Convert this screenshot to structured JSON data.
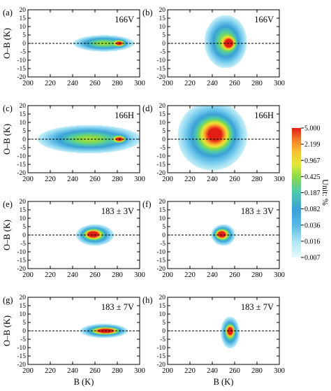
{
  "chart_data": [
    {
      "type": "heatmap",
      "panel_label": "(a)",
      "channel_label": "166V",
      "ylabel": "O–B (K)",
      "xlabel": "",
      "xlim": [
        200,
        300
      ],
      "ylim": [
        -20,
        20
      ],
      "xticks": [
        200,
        220,
        240,
        260,
        280,
        300
      ],
      "yticks": [
        20,
        15,
        10,
        5,
        0,
        -5,
        -10,
        -15,
        -20
      ],
      "reference_line_y": 0,
      "density_blobs": [
        {
          "x": 282,
          "y": 0,
          "sx": 2.5,
          "sy": 1.0,
          "w": 1.0
        },
        {
          "x": 268,
          "y": 0,
          "sx": 13,
          "sy": 2.3,
          "w": 0.55
        }
      ]
    },
    {
      "type": "heatmap",
      "panel_label": "(b)",
      "channel_label": "166V",
      "ylabel": "",
      "xlabel": "",
      "xlim": [
        200,
        300
      ],
      "ylim": [
        -20,
        20
      ],
      "xticks": [
        200,
        220,
        240,
        260,
        280,
        300
      ],
      "yticks": [
        20,
        15,
        10,
        5,
        0,
        -5,
        -10,
        -15,
        -20
      ],
      "reference_line_y": 0,
      "density_blobs": [
        {
          "x": 255,
          "y": 0,
          "sx": 3,
          "sy": 2,
          "w": 1.0
        },
        {
          "x": 252,
          "y": 1,
          "sx": 9,
          "sy": 7.5,
          "w": 0.55
        }
      ]
    },
    {
      "type": "heatmap",
      "panel_label": "(c)",
      "channel_label": "166H",
      "ylabel": "O–B (K)",
      "xlabel": "",
      "xlim": [
        200,
        300
      ],
      "ylim": [
        -20,
        20
      ],
      "xticks": [
        200,
        220,
        240,
        260,
        280,
        300
      ],
      "yticks": [
        20,
        15,
        10,
        5,
        0,
        -5,
        -10,
        -15,
        -20
      ],
      "reference_line_y": 0,
      "density_blobs": [
        {
          "x": 282,
          "y": 0,
          "sx": 3,
          "sy": 1.1,
          "w": 1.0
        },
        {
          "x": 255,
          "y": 0,
          "sx": 22,
          "sy": 4.0,
          "w": 0.55
        }
      ]
    },
    {
      "type": "heatmap",
      "panel_label": "(d)",
      "channel_label": "166H",
      "ylabel": "",
      "xlabel": "",
      "xlim": [
        200,
        300
      ],
      "ylim": [
        -20,
        20
      ],
      "xticks": [
        200,
        220,
        240,
        260,
        280,
        300
      ],
      "yticks": [
        20,
        15,
        10,
        5,
        0,
        -5,
        -10,
        -15,
        -20
      ],
      "reference_line_y": 0,
      "density_blobs": [
        {
          "x": 243,
          "y": 3,
          "sx": 8,
          "sy": 5,
          "w": 0.7
        },
        {
          "x": 240,
          "y": 2,
          "sx": 15,
          "sy": 10,
          "w": 0.5
        }
      ]
    },
    {
      "type": "heatmap",
      "panel_label": "(e)",
      "channel_label": "183 ± 3V",
      "ylabel": "O–B (K)",
      "xlabel": "",
      "xlim": [
        200,
        300
      ],
      "ylim": [
        -20,
        20
      ],
      "xticks": [
        200,
        220,
        240,
        260,
        280,
        300
      ],
      "yticks": [
        20,
        15,
        10,
        5,
        0,
        -5,
        -10,
        -15,
        -20
      ],
      "reference_line_y": 0,
      "density_blobs": [
        {
          "x": 258,
          "y": 0.5,
          "sx": 4,
          "sy": 1.5,
          "w": 1.0
        },
        {
          "x": 260,
          "y": 0,
          "sx": 8,
          "sy": 3,
          "w": 0.55
        }
      ]
    },
    {
      "type": "heatmap",
      "panel_label": "(f)",
      "channel_label": "183 ± 3V",
      "ylabel": "",
      "xlabel": "",
      "xlim": [
        200,
        300
      ],
      "ylim": [
        -20,
        20
      ],
      "xticks": [
        200,
        220,
        240,
        260,
        280,
        300
      ],
      "yticks": [
        20,
        15,
        10,
        5,
        0,
        -5,
        -10,
        -15,
        -20
      ],
      "reference_line_y": 0,
      "density_blobs": [
        {
          "x": 248,
          "y": 0.5,
          "sx": 3,
          "sy": 1.5,
          "w": 1.0
        },
        {
          "x": 250,
          "y": 0,
          "sx": 5,
          "sy": 3,
          "w": 0.55
        }
      ]
    },
    {
      "type": "heatmap",
      "panel_label": "(g)",
      "channel_label": "183 ± 7V",
      "ylabel": "O–B (K)",
      "xlabel": "B (K)",
      "xlim": [
        200,
        300
      ],
      "ylim": [
        -20,
        20
      ],
      "xticks": [
        200,
        220,
        240,
        260,
        280,
        300
      ],
      "yticks": [
        20,
        15,
        10,
        5,
        0,
        -5,
        -10,
        -15,
        -20
      ],
      "reference_line_y": 0,
      "density_blobs": [
        {
          "x": 270,
          "y": 0,
          "sx": 6,
          "sy": 1,
          "w": 1.0
        },
        {
          "x": 268,
          "y": 0,
          "sx": 10,
          "sy": 2,
          "w": 0.55
        }
      ]
    },
    {
      "type": "heatmap",
      "panel_label": "(h)",
      "channel_label": "183 ± 7V",
      "ylabel": "",
      "xlabel": "B (K)",
      "xlim": [
        200,
        300
      ],
      "ylim": [
        -20,
        20
      ],
      "xticks": [
        200,
        220,
        240,
        260,
        280,
        300
      ],
      "yticks": [
        20,
        15,
        10,
        5,
        0,
        -5,
        -10,
        -15,
        -20
      ],
      "reference_line_y": 0,
      "density_blobs": [
        {
          "x": 256,
          "y": 0,
          "sx": 2,
          "sy": 1.8,
          "w": 1.0
        },
        {
          "x": 256,
          "y": -1,
          "sx": 4,
          "sy": 4.5,
          "w": 0.55
        }
      ]
    }
  ],
  "colorbar": {
    "label": "Unit: %",
    "ticks": [
      "5.000",
      "2.199",
      "0.967",
      "0.425",
      "0.187",
      "0.082",
      "0.036",
      "0.016",
      "0.007"
    ],
    "colors": [
      "#ffffff",
      "#c8f0f8",
      "#7fd0ec",
      "#3a9fd8",
      "#4dc8b4",
      "#7ad85a",
      "#d8e83a",
      "#f8c832",
      "#f88a2a",
      "#e82a1e"
    ]
  }
}
